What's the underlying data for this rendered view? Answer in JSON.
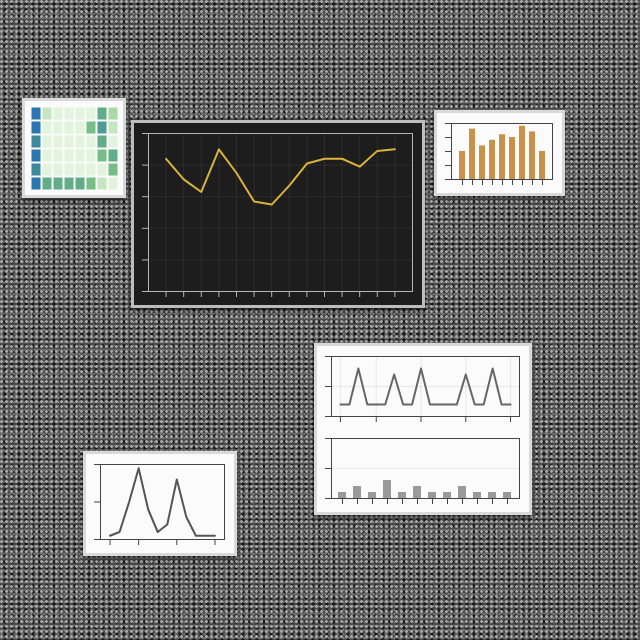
{
  "chart_data": [
    {
      "type": "heatmap",
      "cells": [
        [
          9,
          2,
          1,
          1,
          1,
          1,
          6,
          3
        ],
        [
          9,
          1,
          1,
          1,
          1,
          5,
          7,
          2
        ],
        [
          8,
          1,
          1,
          1,
          1,
          1,
          6,
          1
        ],
        [
          9,
          1,
          1,
          1,
          1,
          1,
          5,
          6
        ],
        [
          8,
          1,
          1,
          1,
          1,
          1,
          1,
          5
        ],
        [
          9,
          6,
          6,
          6,
          6,
          5,
          2,
          1
        ]
      ],
      "zlim": [
        0,
        10
      ],
      "tick_labels": false
    },
    {
      "type": "line",
      "x": [
        1,
        2,
        3,
        4,
        5,
        6,
        7,
        8,
        9,
        10,
        11,
        12,
        13,
        14
      ],
      "values": [
        8.4,
        7.1,
        6.3,
        9.0,
        7.5,
        5.7,
        5.5,
        6.7,
        8.1,
        8.4,
        8.4,
        7.9,
        8.9,
        9.0
      ],
      "xlim": [
        0,
        15
      ],
      "ylim": [
        0,
        10
      ],
      "xticks": [
        1,
        2,
        3,
        4,
        5,
        6,
        7,
        8,
        9,
        10,
        11,
        12,
        13,
        14
      ],
      "yticks": [
        0,
        2,
        4,
        6,
        8,
        10
      ],
      "grid": true,
      "tick_labels": false,
      "color": "#d9b43a"
    },
    {
      "type": "bar",
      "categories": [
        null,
        null,
        null,
        null,
        null,
        null,
        null,
        null,
        null
      ],
      "values": [
        0.5,
        0.9,
        0.6,
        0.7,
        0.8,
        0.75,
        0.95,
        0.85,
        0.5
      ],
      "ylim": [
        0,
        1
      ],
      "yticks": [
        0,
        0.25,
        0.5,
        0.75,
        1
      ],
      "grid": false,
      "tick_labels": false,
      "color": "#c8924a"
    },
    {
      "type": "line",
      "x": [
        1,
        2,
        3,
        4,
        5,
        6,
        7,
        8,
        9,
        10,
        11,
        12,
        13,
        14,
        15,
        16,
        17,
        18,
        19,
        20
      ],
      "values": [
        2,
        2,
        8,
        2,
        2,
        2,
        7,
        2,
        2,
        8,
        2,
        2,
        2,
        2,
        7,
        2,
        2,
        8,
        2,
        2
      ],
      "xlim": [
        0,
        21
      ],
      "ylim": [
        0,
        10
      ],
      "xticks": [
        1,
        5,
        10,
        15,
        20
      ],
      "yticks": [
        0,
        5,
        10
      ],
      "grid": true,
      "tick_labels": false,
      "color": "#666666"
    },
    {
      "type": "bar",
      "categories": [
        null,
        null,
        null,
        null,
        null,
        null,
        null,
        null,
        null,
        null,
        null,
        null
      ],
      "values": [
        1,
        2,
        1,
        3,
        1,
        2,
        1,
        1,
        2,
        1,
        1,
        1
      ],
      "ylim": [
        0,
        10
      ],
      "yticks": [
        0,
        5,
        10
      ],
      "grid": true,
      "tick_labels": false,
      "color": "#9a9a9a"
    },
    {
      "type": "line",
      "x": [
        1,
        2,
        3,
        4,
        5,
        6,
        7,
        8,
        9,
        10,
        11,
        12
      ],
      "values": [
        0.05,
        0.1,
        0.5,
        0.95,
        0.4,
        0.1,
        0.2,
        0.8,
        0.3,
        0.05,
        0.05,
        0.05
      ],
      "xlim": [
        0,
        13
      ],
      "ylim": [
        0,
        1
      ],
      "xticks": [
        1,
        4,
        8,
        12
      ],
      "yticks": [
        0,
        0.5,
        1
      ],
      "grid": false,
      "tick_labels": false,
      "color": "#555555"
    }
  ]
}
